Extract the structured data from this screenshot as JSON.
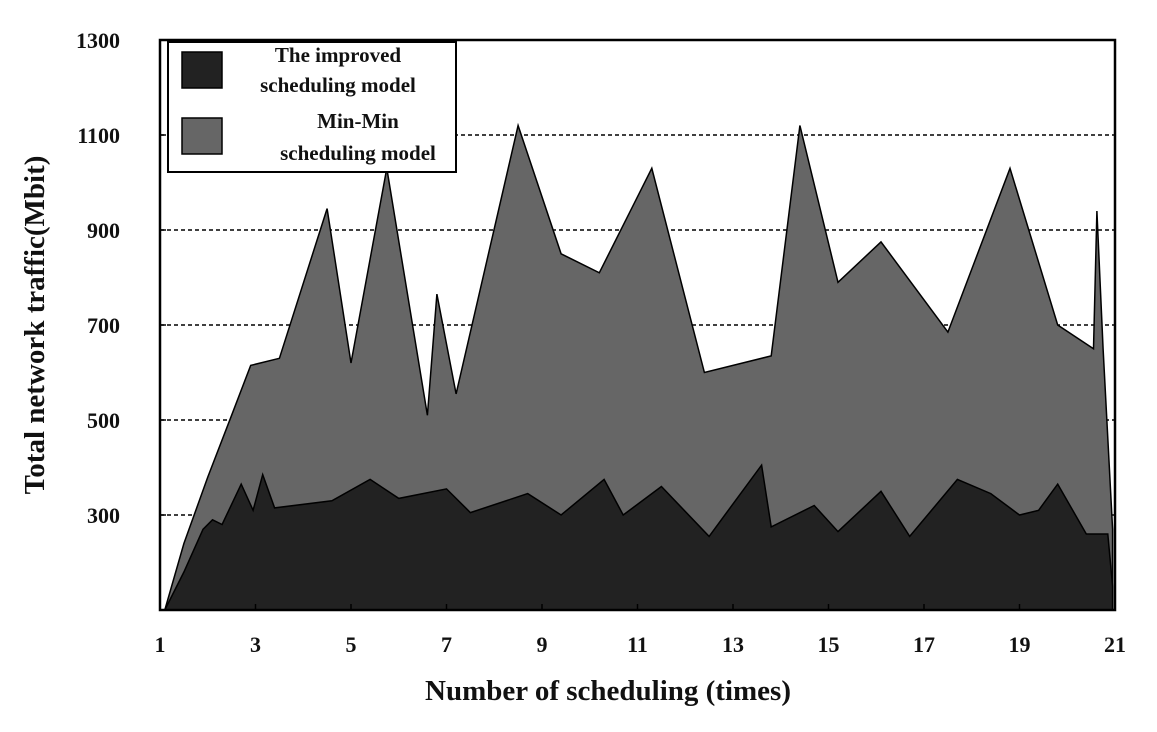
{
  "chart_data": {
    "type": "area",
    "xlabel": "Number of scheduling (times)",
    "ylabel": "Total network traffic(Mbit)",
    "xlim": [
      1,
      21
    ],
    "ylim": [
      100,
      1300
    ],
    "x_ticks": [
      1,
      3,
      5,
      7,
      9,
      11,
      13,
      15,
      17,
      19,
      21
    ],
    "y_ticks": [
      300,
      500,
      700,
      900,
      1100,
      1300
    ],
    "grid": "horizontal dashed at 300, 500, 700, 900, 1100",
    "legend_position": "top-left",
    "series": [
      {
        "name_lines": [
          "Min-Min",
          "scheduling model"
        ],
        "color": "#666666",
        "points": [
          [
            1.1,
            100
          ],
          [
            1.5,
            240
          ],
          [
            2.0,
            380
          ],
          [
            2.5,
            510
          ],
          [
            2.9,
            615
          ],
          [
            3.5,
            630
          ],
          [
            4.5,
            945
          ],
          [
            5.0,
            620
          ],
          [
            5.75,
            1030
          ],
          [
            6.6,
            510
          ],
          [
            6.8,
            765
          ],
          [
            7.2,
            555
          ],
          [
            8.5,
            1120
          ],
          [
            9.4,
            850
          ],
          [
            10.2,
            810
          ],
          [
            11.3,
            1030
          ],
          [
            12.4,
            600
          ],
          [
            13.8,
            635
          ],
          [
            14.4,
            1120
          ],
          [
            15.2,
            790
          ],
          [
            16.1,
            875
          ],
          [
            17.5,
            685
          ],
          [
            18.8,
            1030
          ],
          [
            19.8,
            700
          ],
          [
            20.55,
            650
          ],
          [
            20.62,
            940
          ],
          [
            20.75,
            650
          ],
          [
            20.95,
            270
          ]
        ]
      },
      {
        "name_lines": [
          "The improved",
          "scheduling model"
        ],
        "color": "#222222",
        "points": [
          [
            1.1,
            100
          ],
          [
            1.5,
            180
          ],
          [
            1.9,
            270
          ],
          [
            2.1,
            290
          ],
          [
            2.3,
            280
          ],
          [
            2.7,
            365
          ],
          [
            2.95,
            310
          ],
          [
            3.15,
            385
          ],
          [
            3.4,
            315
          ],
          [
            4.6,
            330
          ],
          [
            5.4,
            375
          ],
          [
            6.0,
            335
          ],
          [
            7.0,
            355
          ],
          [
            7.5,
            305
          ],
          [
            8.7,
            345
          ],
          [
            9.4,
            300
          ],
          [
            10.3,
            375
          ],
          [
            10.7,
            300
          ],
          [
            11.5,
            360
          ],
          [
            12.5,
            255
          ],
          [
            13.6,
            405
          ],
          [
            13.8,
            275
          ],
          [
            14.7,
            320
          ],
          [
            15.2,
            265
          ],
          [
            16.1,
            350
          ],
          [
            16.7,
            255
          ],
          [
            17.7,
            375
          ],
          [
            18.4,
            345
          ],
          [
            19.0,
            300
          ],
          [
            19.4,
            310
          ],
          [
            19.8,
            365
          ],
          [
            20.4,
            260
          ],
          [
            20.85,
            260
          ],
          [
            20.95,
            150
          ]
        ]
      }
    ]
  }
}
